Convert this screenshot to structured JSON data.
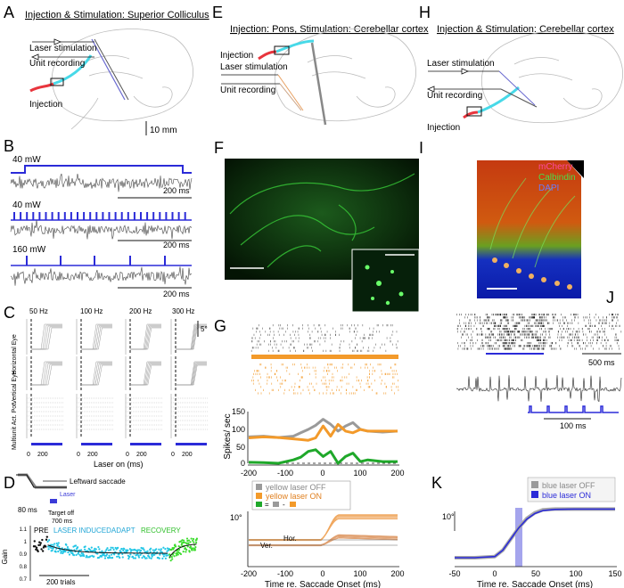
{
  "panels": {
    "A": {
      "letter": "A",
      "title": "Injection & Stimulation: Superior Colliculus",
      "labels": {
        "laser": "Laser stimulation",
        "unit": "Unit recording",
        "injection": "Injection"
      },
      "scale": "10 mm"
    },
    "B": {
      "letter": "B",
      "rows": [
        {
          "power": "40 mW",
          "scale": "200 ms"
        },
        {
          "power": "40 mW",
          "scale": "200 ms"
        },
        {
          "power": "160 mW",
          "scale": "200 ms"
        }
      ]
    },
    "C": {
      "letter": "C",
      "freqs": [
        "50 Hz",
        "100 Hz",
        "200 Hz",
        "300 Hz"
      ],
      "rows": [
        "Horizontal Eye",
        "Vertical Eye",
        "Multiunit Act. Pot."
      ],
      "scale": "5°",
      "xlabel": "Laser on (ms)",
      "ticks": [
        "0",
        "200"
      ]
    },
    "D": {
      "letter": "D",
      "saccade": "Leftward saccade",
      "laser": "Laser",
      "t80": "80 ms",
      "target_off": "Target off",
      "t700": "700 ms",
      "phases": {
        "pre": "PRE",
        "laser": "LASER INDUCEDADAPT",
        "recovery": "RECOVERY"
      },
      "ylabel": "Gain",
      "yticks": [
        "1.1",
        "1",
        "0.9",
        "0.8",
        "0.7"
      ],
      "scale": "200 trials",
      "colors": {
        "pre": "#111111",
        "laser": "#22c6e6",
        "recovery": "#3ddc2e"
      }
    },
    "E": {
      "letter": "E",
      "title": "Injection: Pons, Stimulation: Cerebellar cortex",
      "labels": {
        "injection": "Injection",
        "laser": "Laser stimulation",
        "unit": "Unit recording"
      }
    },
    "F": {
      "letter": "F"
    },
    "G": {
      "letter": "G",
      "ylabel": "Spikes/ sec",
      "yticks": [
        "150",
        "100",
        "50",
        "0"
      ],
      "xticks": [
        "-200",
        "-100",
        "0",
        "100",
        "200"
      ],
      "legend": {
        "off": "yellow laser OFF",
        "on": "yellow laser ON"
      },
      "scale": "10°",
      "hor": "Hor.",
      "ver": "Ver.",
      "xlabel": "Time re. Saccade Onset (ms)",
      "colors": {
        "off": "#9a9a9a",
        "on": "#f39a2a",
        "diff": "#1fa82a"
      }
    },
    "H": {
      "letter": "H",
      "title": "Injection & Stimulation: Cerebellar cortex",
      "labels": {
        "laser": "Laser stimulation",
        "unit": "Unit recording",
        "injection": "Injection"
      }
    },
    "I": {
      "letter": "I",
      "legend": {
        "mcherry": "mCherry",
        "calbindin": "Calbindin",
        "dapi": "DAPI"
      }
    },
    "J": {
      "letter": "J",
      "scale1": "500 ms",
      "scale2": "100 ms"
    },
    "K": {
      "letter": "K",
      "legend": {
        "off": "blue laser OFF",
        "on": "blue laser ON"
      },
      "scale": "10°",
      "xticks": [
        "-50",
        "0",
        "50",
        "100",
        "150"
      ],
      "xlabel": "Time re. Saccade Onset (ms)"
    }
  },
  "chart_data": [
    {
      "type": "line",
      "panel": "G",
      "x": [
        -200,
        -160,
        -120,
        -80,
        -60,
        -40,
        -20,
        0,
        20,
        40,
        60,
        80,
        100,
        120,
        160,
        200
      ],
      "series": [
        {
          "name": "yellow laser OFF",
          "values": [
            78,
            80,
            76,
            80,
            90,
            100,
            112,
            130,
            115,
            95,
            110,
            120,
            100,
            95,
            92,
            95
          ]
        },
        {
          "name": "yellow laser ON",
          "values": [
            75,
            78,
            76,
            72,
            70,
            68,
            75,
            110,
            80,
            115,
            95,
            90,
            100,
            95,
            95,
            95
          ]
        },
        {
          "values": [
            3,
            2,
            0,
            10,
            18,
            35,
            40,
            20,
            35,
            0,
            20,
            30,
            5,
            10,
            5,
            5
          ]
        }
      ],
      "xlim": [
        -200,
        200
      ],
      "ylim": [
        0,
        150
      ],
      "xlabel": "Time re. Saccade Onset (ms)",
      "ylabel": "Spikes/ sec"
    },
    {
      "type": "line",
      "panel": "K",
      "x": [
        -50,
        -25,
        0,
        10,
        20,
        30,
        40,
        50,
        60,
        75,
        100,
        150
      ],
      "series": [
        {
          "name": "blue laser OFF",
          "values": [
            0,
            0,
            0.3,
            2,
            5,
            8,
            10.5,
            12,
            12.8,
            13,
            13,
            13
          ]
        },
        {
          "name": "blue laser ON",
          "values": [
            0,
            0,
            0.3,
            2,
            5,
            8,
            10.3,
            11.8,
            12.6,
            12.9,
            13,
            13
          ]
        }
      ],
      "xlim": [
        -50,
        150
      ],
      "xlabel": "Time re. Saccade Onset (ms)"
    },
    {
      "type": "scatter",
      "panel": "D",
      "ylabel": "Gain",
      "ylim": [
        0.7,
        1.1
      ],
      "series": [
        {
          "name": "PRE",
          "mean": 0.96,
          "trials": [
            0,
            40
          ]
        },
        {
          "name": "LASER INDUCEDADAPT",
          "start_gain": 0.96,
          "end_gain": 0.9,
          "trials": [
            40,
            390
          ]
        },
        {
          "name": "RECOVERY",
          "start_gain": 0.87,
          "end_gain": 0.97,
          "trials": [
            390,
            470
          ]
        }
      ]
    }
  ]
}
